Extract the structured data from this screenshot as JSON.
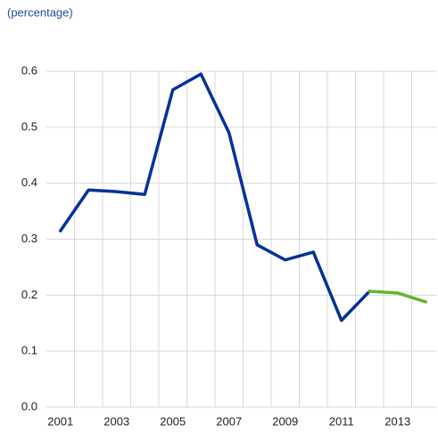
{
  "chart_data": {
    "type": "line",
    "subtitle": "(percentage)",
    "categories": [
      "2001",
      null,
      "2003",
      null,
      "2005",
      null,
      "2007",
      null,
      "2009",
      null,
      "2011",
      null,
      "2013",
      null
    ],
    "series": [
      {
        "color": "#003299",
        "values": [
          0.315,
          0.388,
          0.385,
          0.38,
          0.567,
          0.595,
          0.49,
          0.29,
          0.263,
          0.277,
          0.155,
          0.207,
          null,
          null
        ]
      },
      {
        "color": "#65b32e",
        "values": [
          null,
          null,
          null,
          null,
          null,
          null,
          null,
          null,
          null,
          null,
          null,
          0.207,
          0.204,
          0.188
        ]
      }
    ],
    "ylim": [
      0,
      0.6
    ],
    "yticks": [
      {
        "value": 0,
        "label": "0.0"
      },
      0.1,
      0.2,
      0.3,
      0.4,
      0.5,
      0.6
    ],
    "grid": true
  }
}
